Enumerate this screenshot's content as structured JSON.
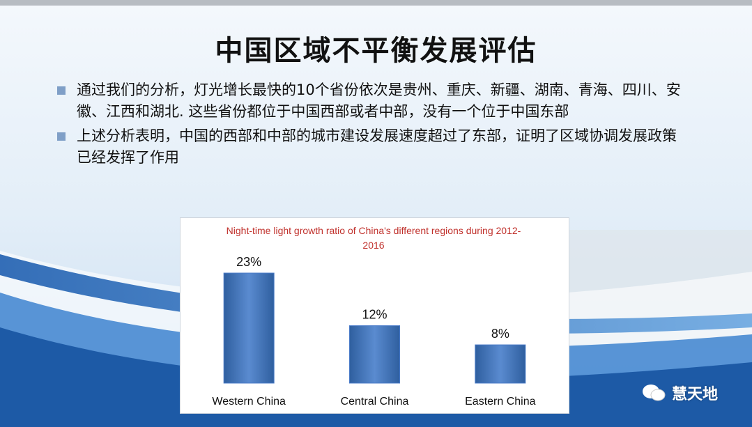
{
  "header": {
    "title": "中国区域不平衡发展评估"
  },
  "bullets": [
    "通过我们的分析，灯光增长最快的10个省份依次是贵州、重庆、新疆、湖南、青海、四川、安徽、江西和湖北. 这些省份都位于中国西部或者中部，没有一个位于中国东部",
    "上述分析表明，中国的西部和中部的城市建设发展速度超过了东部，证明了区域协调发展政策已经发挥了作用"
  ],
  "chart_data": {
    "type": "bar",
    "title": "Night-time light growth ratio of China's different regions during 2012-2016",
    "categories": [
      "Western China",
      "Central China",
      "Eastern China"
    ],
    "values": [
      23,
      12,
      8
    ],
    "value_labels": [
      "23%",
      "12%",
      "8%"
    ],
    "color": "#4a7bc8"
  },
  "watermark": "慧天地"
}
